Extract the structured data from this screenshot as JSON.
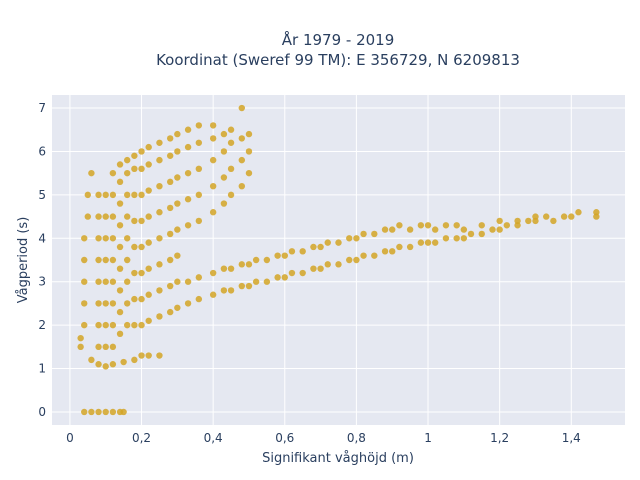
{
  "chart_data": {
    "type": "scatter",
    "title_line1": "År 1979 - 2019",
    "title_line2": "Koordinat (Sweref 99 TM): E 356729, N 6209813",
    "xlabel": "Signifikant våghöjd (m)",
    "ylabel": "Vågperiod (s)",
    "xlim": [
      -0.05,
      1.55
    ],
    "ylim": [
      -0.3,
      7.3
    ],
    "xticks": [
      0,
      0.2,
      0.4,
      0.6,
      0.8,
      1,
      1.2,
      1.4
    ],
    "xtick_labels": [
      "0",
      "0,2",
      "0,4",
      "0,6",
      "0,8",
      "1",
      "1,2",
      "1,4"
    ],
    "yticks": [
      0,
      1,
      2,
      3,
      4,
      5,
      6,
      7
    ],
    "ytick_labels": [
      "0",
      "1",
      "2",
      "3",
      "4",
      "5",
      "6",
      "7"
    ],
    "grid": true,
    "marker_color": "#d4a526",
    "background_color": "#e5e8f1",
    "points": [
      [
        0.04,
        0
      ],
      [
        0.06,
        0
      ],
      [
        0.08,
        0
      ],
      [
        0.1,
        0
      ],
      [
        0.12,
        0
      ],
      [
        0.14,
        0
      ],
      [
        0.15,
        0
      ],
      [
        0.03,
        1.5
      ],
      [
        0.03,
        1.7
      ],
      [
        0.04,
        2.0
      ],
      [
        0.04,
        2.5
      ],
      [
        0.04,
        3.0
      ],
      [
        0.04,
        3.5
      ],
      [
        0.04,
        4.0
      ],
      [
        0.05,
        4.5
      ],
      [
        0.05,
        5.0
      ],
      [
        0.06,
        5.5
      ],
      [
        0.06,
        1.2
      ],
      [
        0.08,
        1.1
      ],
      [
        0.1,
        1.05
      ],
      [
        0.12,
        1.1
      ],
      [
        0.15,
        1.15
      ],
      [
        0.18,
        1.2
      ],
      [
        0.2,
        1.3
      ],
      [
        0.22,
        1.3
      ],
      [
        0.25,
        1.3
      ],
      [
        0.08,
        1.5
      ],
      [
        0.08,
        2.0
      ],
      [
        0.08,
        2.5
      ],
      [
        0.08,
        3.0
      ],
      [
        0.08,
        3.5
      ],
      [
        0.08,
        4.0
      ],
      [
        0.08,
        4.5
      ],
      [
        0.08,
        5.0
      ],
      [
        0.1,
        1.5
      ],
      [
        0.1,
        2.0
      ],
      [
        0.1,
        2.5
      ],
      [
        0.1,
        3.0
      ],
      [
        0.1,
        3.5
      ],
      [
        0.1,
        4.0
      ],
      [
        0.1,
        4.5
      ],
      [
        0.1,
        5.0
      ],
      [
        0.12,
        1.5
      ],
      [
        0.12,
        2.0
      ],
      [
        0.12,
        2.5
      ],
      [
        0.12,
        3.0
      ],
      [
        0.12,
        3.5
      ],
      [
        0.12,
        4.0
      ],
      [
        0.12,
        4.5
      ],
      [
        0.12,
        5.0
      ],
      [
        0.12,
        5.5
      ],
      [
        0.14,
        1.8
      ],
      [
        0.14,
        2.3
      ],
      [
        0.14,
        2.8
      ],
      [
        0.14,
        3.3
      ],
      [
        0.14,
        3.8
      ],
      [
        0.14,
        4.3
      ],
      [
        0.14,
        4.8
      ],
      [
        0.14,
        5.3
      ],
      [
        0.14,
        5.7
      ],
      [
        0.16,
        2.0
      ],
      [
        0.16,
        2.5
      ],
      [
        0.16,
        3.0
      ],
      [
        0.16,
        3.5
      ],
      [
        0.16,
        4.0
      ],
      [
        0.16,
        4.5
      ],
      [
        0.16,
        5.0
      ],
      [
        0.16,
        5.5
      ],
      [
        0.16,
        5.8
      ],
      [
        0.18,
        2.0
      ],
      [
        0.18,
        2.6
      ],
      [
        0.18,
        3.2
      ],
      [
        0.18,
        3.8
      ],
      [
        0.18,
        4.4
      ],
      [
        0.18,
        5.0
      ],
      [
        0.18,
        5.6
      ],
      [
        0.18,
        5.9
      ],
      [
        0.2,
        2.0
      ],
      [
        0.2,
        2.6
      ],
      [
        0.2,
        3.2
      ],
      [
        0.2,
        3.8
      ],
      [
        0.2,
        4.4
      ],
      [
        0.2,
        5.0
      ],
      [
        0.2,
        5.6
      ],
      [
        0.2,
        6.0
      ],
      [
        0.22,
        2.1
      ],
      [
        0.22,
        2.7
      ],
      [
        0.22,
        3.3
      ],
      [
        0.22,
        3.9
      ],
      [
        0.22,
        4.5
      ],
      [
        0.22,
        5.1
      ],
      [
        0.22,
        5.7
      ],
      [
        0.22,
        6.1
      ],
      [
        0.25,
        2.2
      ],
      [
        0.25,
        2.8
      ],
      [
        0.25,
        3.4
      ],
      [
        0.25,
        4.0
      ],
      [
        0.25,
        4.6
      ],
      [
        0.25,
        5.2
      ],
      [
        0.25,
        5.8
      ],
      [
        0.25,
        6.2
      ],
      [
        0.28,
        2.3
      ],
      [
        0.28,
        2.9
      ],
      [
        0.28,
        3.5
      ],
      [
        0.28,
        4.1
      ],
      [
        0.28,
        4.7
      ],
      [
        0.28,
        5.3
      ],
      [
        0.28,
        5.9
      ],
      [
        0.28,
        6.3
      ],
      [
        0.3,
        2.4
      ],
      [
        0.3,
        3.0
      ],
      [
        0.3,
        3.6
      ],
      [
        0.3,
        4.2
      ],
      [
        0.3,
        4.8
      ],
      [
        0.3,
        5.4
      ],
      [
        0.3,
        6.0
      ],
      [
        0.3,
        6.4
      ],
      [
        0.33,
        2.5
      ],
      [
        0.33,
        3.0
      ],
      [
        0.33,
        4.3
      ],
      [
        0.33,
        4.9
      ],
      [
        0.33,
        5.5
      ],
      [
        0.33,
        6.1
      ],
      [
        0.33,
        6.5
      ],
      [
        0.36,
        2.6
      ],
      [
        0.36,
        3.1
      ],
      [
        0.36,
        4.4
      ],
      [
        0.36,
        5.0
      ],
      [
        0.36,
        5.6
      ],
      [
        0.36,
        6.2
      ],
      [
        0.36,
        6.6
      ],
      [
        0.4,
        2.7
      ],
      [
        0.4,
        3.2
      ],
      [
        0.4,
        4.6
      ],
      [
        0.4,
        5.2
      ],
      [
        0.4,
        5.8
      ],
      [
        0.4,
        6.3
      ],
      [
        0.4,
        6.6
      ],
      [
        0.43,
        2.8
      ],
      [
        0.43,
        3.3
      ],
      [
        0.43,
        4.8
      ],
      [
        0.43,
        5.4
      ],
      [
        0.43,
        6.0
      ],
      [
        0.43,
        6.4
      ],
      [
        0.45,
        2.8
      ],
      [
        0.45,
        3.3
      ],
      [
        0.45,
        5.0
      ],
      [
        0.45,
        5.6
      ],
      [
        0.45,
        6.2
      ],
      [
        0.45,
        6.5
      ],
      [
        0.48,
        2.9
      ],
      [
        0.48,
        3.4
      ],
      [
        0.48,
        5.2
      ],
      [
        0.48,
        5.8
      ],
      [
        0.48,
        6.3
      ],
      [
        0.48,
        7.0
      ],
      [
        0.5,
        2.9
      ],
      [
        0.5,
        3.4
      ],
      [
        0.5,
        5.5
      ],
      [
        0.5,
        6.0
      ],
      [
        0.5,
        6.4
      ],
      [
        0.52,
        3.0
      ],
      [
        0.52,
        3.5
      ],
      [
        0.55,
        3.0
      ],
      [
        0.55,
        3.5
      ],
      [
        0.58,
        3.1
      ],
      [
        0.58,
        3.6
      ],
      [
        0.6,
        3.1
      ],
      [
        0.6,
        3.6
      ],
      [
        0.62,
        3.2
      ],
      [
        0.62,
        3.7
      ],
      [
        0.65,
        3.2
      ],
      [
        0.65,
        3.7
      ],
      [
        0.68,
        3.3
      ],
      [
        0.68,
        3.8
      ],
      [
        0.7,
        3.3
      ],
      [
        0.7,
        3.8
      ],
      [
        0.72,
        3.4
      ],
      [
        0.72,
        3.9
      ],
      [
        0.75,
        3.4
      ],
      [
        0.75,
        3.9
      ],
      [
        0.78,
        3.5
      ],
      [
        0.78,
        4.0
      ],
      [
        0.8,
        3.5
      ],
      [
        0.8,
        4.0
      ],
      [
        0.82,
        3.6
      ],
      [
        0.82,
        4.1
      ],
      [
        0.85,
        3.6
      ],
      [
        0.85,
        4.1
      ],
      [
        0.88,
        3.7
      ],
      [
        0.88,
        4.2
      ],
      [
        0.9,
        3.7
      ],
      [
        0.9,
        4.2
      ],
      [
        0.92,
        3.8
      ],
      [
        0.92,
        4.3
      ],
      [
        0.95,
        3.8
      ],
      [
        0.95,
        4.2
      ],
      [
        0.98,
        3.9
      ],
      [
        0.98,
        4.3
      ],
      [
        1.0,
        3.9
      ],
      [
        1.0,
        4.3
      ],
      [
        1.02,
        3.9
      ],
      [
        1.02,
        4.2
      ],
      [
        1.05,
        4.0
      ],
      [
        1.05,
        4.3
      ],
      [
        1.08,
        4.0
      ],
      [
        1.08,
        4.3
      ],
      [
        1.1,
        4.0
      ],
      [
        1.1,
        4.2
      ],
      [
        1.12,
        4.1
      ],
      [
        1.15,
        4.1
      ],
      [
        1.15,
        4.3
      ],
      [
        1.18,
        4.2
      ],
      [
        1.2,
        4.2
      ],
      [
        1.2,
        4.4
      ],
      [
        1.22,
        4.3
      ],
      [
        1.25,
        4.3
      ],
      [
        1.25,
        4.4
      ],
      [
        1.28,
        4.4
      ],
      [
        1.3,
        4.4
      ],
      [
        1.3,
        4.5
      ],
      [
        1.33,
        4.5
      ],
      [
        1.35,
        4.4
      ],
      [
        1.38,
        4.5
      ],
      [
        1.4,
        4.5
      ],
      [
        1.42,
        4.6
      ],
      [
        1.47,
        4.5
      ],
      [
        1.47,
        4.6
      ]
    ]
  }
}
